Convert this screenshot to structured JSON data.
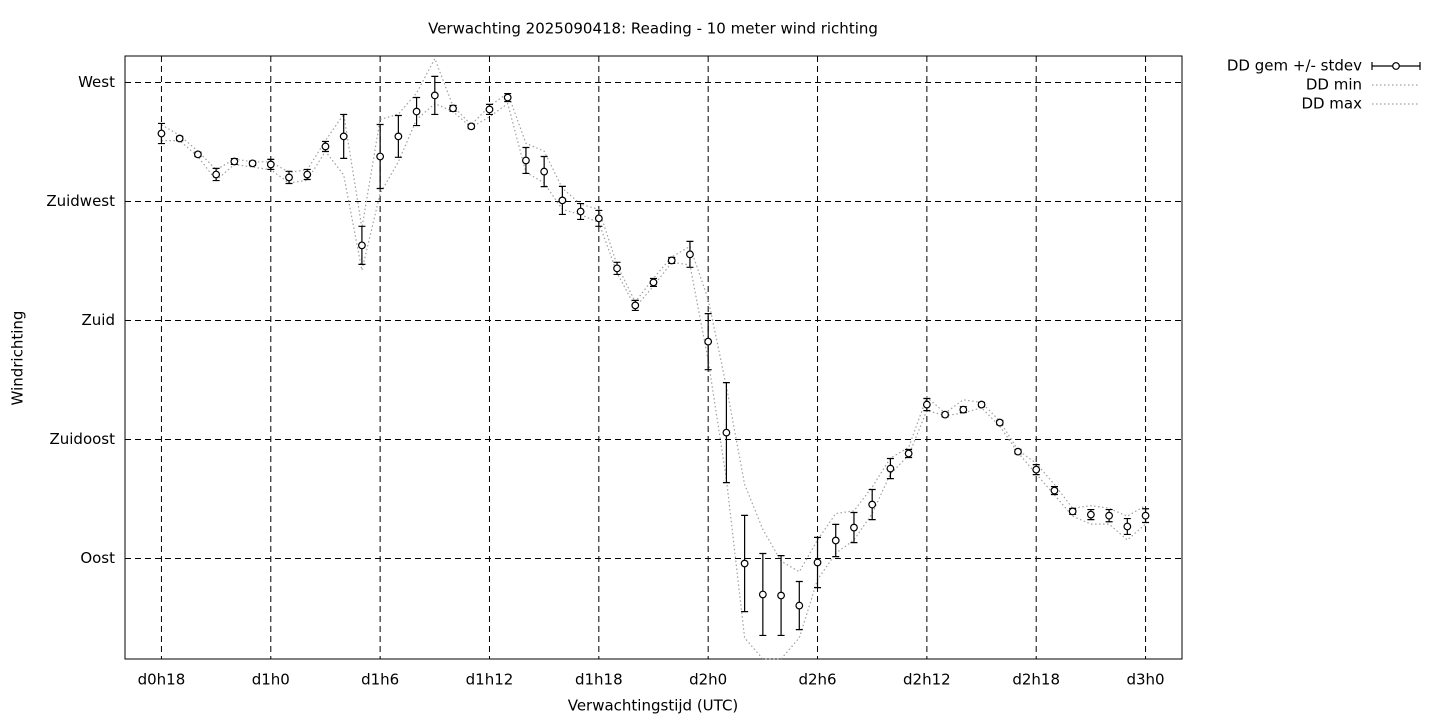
{
  "chart_data": {
    "type": "errorbar-line",
    "title": "Verwachting 2025090418: Reading - 10 meter wind richting",
    "xlabel": "Verwachtingstijd (UTC)",
    "ylabel": "Windrichting",
    "x": [
      18,
      19,
      20,
      21,
      22,
      23,
      24,
      25,
      26,
      27,
      28,
      29,
      30,
      31,
      32,
      33,
      34,
      35,
      36,
      37,
      38,
      39,
      40,
      41,
      42,
      43,
      44,
      45,
      46,
      47,
      48,
      49,
      50,
      51,
      52,
      53,
      54,
      55,
      56,
      57,
      58,
      59,
      60,
      61,
      62,
      63,
      64,
      65,
      66,
      67,
      68,
      69,
      70,
      71,
      72
    ],
    "xlim": [
      16,
      74
    ],
    "xticks": [
      {
        "value": 18,
        "label": "d0h18"
      },
      {
        "value": 24,
        "label": "d1h0"
      },
      {
        "value": 30,
        "label": "d1h6"
      },
      {
        "value": 36,
        "label": "d1h12"
      },
      {
        "value": 42,
        "label": "d1h18"
      },
      {
        "value": 48,
        "label": "d2h0"
      },
      {
        "value": 54,
        "label": "d2h6"
      },
      {
        "value": 60,
        "label": "d2h12"
      },
      {
        "value": 66,
        "label": "d2h18"
      },
      {
        "value": 72,
        "label": "d3h0"
      }
    ],
    "ylim": [
      52,
      280
    ],
    "yticks": [
      {
        "value": 90,
        "label": "Oost"
      },
      {
        "value": 135,
        "label": "Zuidoost"
      },
      {
        "value": 180,
        "label": "Zuid"
      },
      {
        "value": 225,
        "label": "Zuidwest"
      },
      {
        "value": 270,
        "label": "West"
      }
    ],
    "grid": true,
    "legend": "outside-top-right",
    "series": [
      {
        "name": "DD gem +/- stdev",
        "color": "#000000",
        "values": [
          250.7,
          248.8,
          242.8,
          235.2,
          240.1,
          239.4,
          239.0,
          234.1,
          235.2,
          245.8,
          249.6,
          208.4,
          242.0,
          249.6,
          259.0,
          265.1,
          260.2,
          253.4,
          259.8,
          264.3,
          240.5,
          236.3,
          225.4,
          221.2,
          218.6,
          199.7,
          185.7,
          194.4,
          202.7,
          205.0,
          172.0,
          137.6,
          88.1,
          76.4,
          76.0,
          72.2,
          88.5,
          96.8,
          101.7,
          110.4,
          124.0,
          129.7,
          148.2,
          144.4,
          146.3,
          148.2,
          141.4,
          130.4,
          123.6,
          115.7,
          107.8,
          106.6,
          106.2,
          102.1,
          106.2
        ],
        "errors": [
          3.8,
          0.8,
          0.8,
          2.3,
          1.1,
          0.8,
          1.9,
          2.3,
          1.9,
          1.9,
          8.3,
          7.2,
          12.1,
          7.9,
          5.3,
          7.2,
          1.1,
          0.8,
          1.9,
          1.5,
          4.9,
          5.7,
          5.3,
          3.0,
          3.0,
          2.3,
          1.9,
          1.5,
          1.1,
          4.9,
          10.6,
          18.9,
          18.2,
          15.5,
          15.1,
          9.1,
          9.5,
          6.1,
          5.7,
          5.7,
          3.8,
          1.5,
          2.3,
          0.8,
          1.1,
          0.8,
          0.8,
          0.8,
          1.9,
          1.5,
          1.1,
          1.9,
          2.3,
          3.0,
          2.6
        ]
      },
      {
        "name": "DD min",
        "color": "#a0a0a0",
        "values": [
          248,
          248,
          242,
          233,
          239,
          238,
          237,
          232,
          233,
          244,
          235,
          199,
          228,
          240,
          256,
          262,
          259,
          253,
          257,
          262,
          236,
          232,
          222,
          220,
          217,
          198,
          185,
          193,
          202,
          201,
          165,
          120,
          60,
          52,
          52,
          60,
          82,
          92,
          97,
          107,
          122,
          129,
          146,
          144,
          145,
          147,
          140,
          130,
          122,
          114,
          106,
          103,
          103,
          97,
          103
        ]
      },
      {
        "name": "DD max",
        "color": "#a0a0a0",
        "values": [
          254,
          250,
          244,
          237,
          241,
          240,
          240,
          236,
          237,
          248,
          258,
          215,
          256,
          258,
          266,
          279,
          261,
          254,
          261,
          266,
          247,
          244,
          230,
          224,
          222,
          201,
          187,
          196,
          204,
          208,
          188,
          155,
          118,
          101,
          89,
          85,
          97,
          107,
          108,
          117,
          128,
          132,
          151,
          145,
          150,
          149,
          142,
          131,
          126,
          118,
          109,
          110,
          109,
          106,
          110
        ]
      }
    ]
  }
}
